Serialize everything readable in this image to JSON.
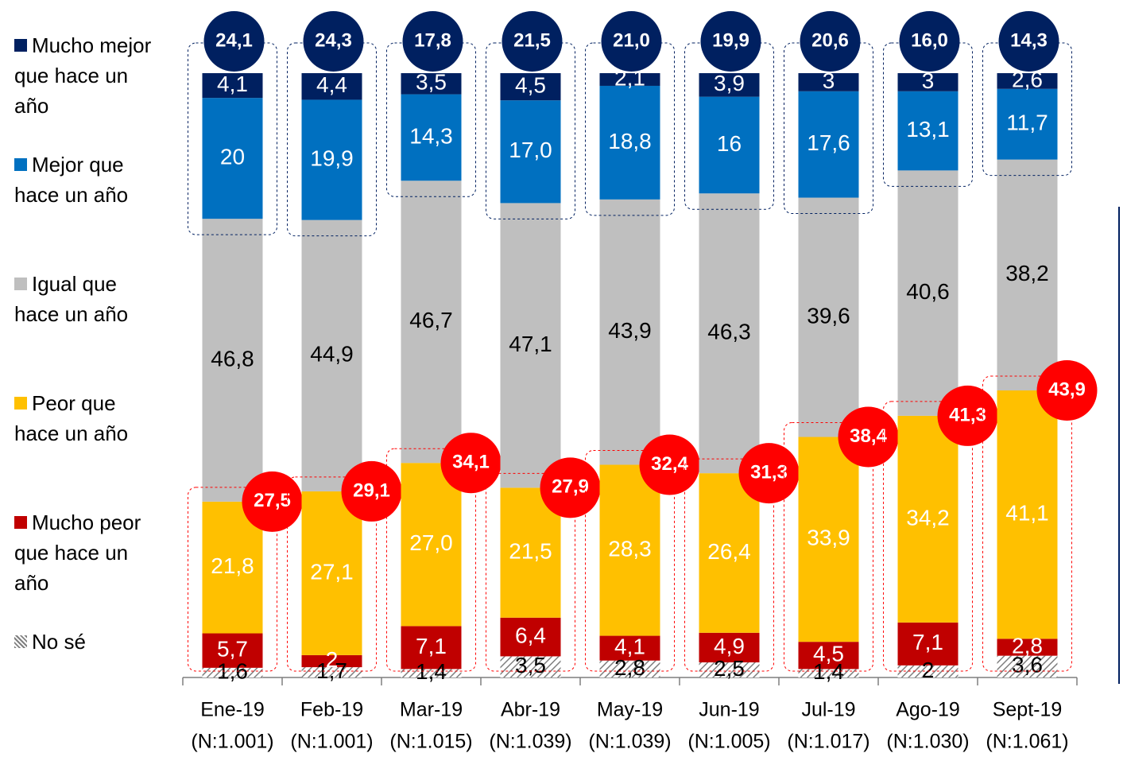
{
  "chart_data": {
    "type": "stacked_bar",
    "categories": [
      "Ene-19",
      "Feb-19",
      "Mar-19",
      "Abr-19",
      "May-19",
      "Jun-19",
      "Jul-19",
      "Ago-19",
      "Sept-19"
    ],
    "sample_sizes": [
      "(N:1.001)",
      "(N:1.001)",
      "(N:1.015)",
      "(N:1.039)",
      "(N:1.039)",
      "(N:1.005)",
      "(N:1.017)",
      "(N:1.030)",
      "(N:1.061)"
    ],
    "series": [
      {
        "name": "No sé",
        "color": "#a6a6a6",
        "hatch": true,
        "label_color": "#000000",
        "values": [
          1.6,
          1.7,
          1.4,
          3.5,
          2.8,
          2.5,
          1.4,
          2,
          3.6
        ],
        "value_labels": [
          "1,6",
          "1,7",
          "1,4",
          "3,5",
          "2,8",
          "2,5",
          "1,4",
          "2",
          "3,6"
        ]
      },
      {
        "name": "Mucho peor que hace un año",
        "color": "#c00000",
        "label_color": "#ffffff",
        "values": [
          5.7,
          2,
          7.1,
          6.4,
          4.1,
          4.9,
          4.5,
          7.1,
          2.8
        ],
        "value_labels": [
          "5,7",
          "2",
          "7,1",
          "6,4",
          "4,1",
          "4,9",
          "4,5",
          "7,1",
          "2,8"
        ]
      },
      {
        "name": "Peor que hace un año",
        "color": "#ffc000",
        "label_color": "#ffffff",
        "values": [
          21.8,
          27.1,
          27.0,
          21.5,
          28.3,
          26.4,
          33.9,
          34.2,
          41.1
        ],
        "value_labels": [
          "21,8",
          "27,1",
          "27,0",
          "21,5",
          "28,3",
          "26,4",
          "33,9",
          "34,2",
          "41,1"
        ]
      },
      {
        "name": "Igual que hace un año",
        "color": "#bfbfbf",
        "label_color": "#000000",
        "values": [
          46.8,
          44.9,
          46.7,
          47.1,
          43.9,
          46.3,
          39.6,
          40.6,
          38.2
        ],
        "value_labels": [
          "46,8",
          "44,9",
          "46,7",
          "47,1",
          "43,9",
          "46,3",
          "39,6",
          "40,6",
          "38,2"
        ]
      },
      {
        "name": "Mejor que hace un año",
        "color": "#0070c0",
        "label_color": "#ffffff",
        "values": [
          20,
          19.9,
          14.3,
          17.0,
          18.8,
          16,
          17.6,
          13.1,
          11.7
        ],
        "value_labels": [
          "20",
          "19,9",
          "14,3",
          "17,0",
          "18,8",
          "16",
          "17,6",
          "13,1",
          "11,7"
        ]
      },
      {
        "name": "Mucho mejor que hace un año",
        "color": "#002060",
        "label_color": "#ffffff",
        "values": [
          4.1,
          4.4,
          3.5,
          4.5,
          2.1,
          3.9,
          3,
          3,
          2.6
        ],
        "value_labels": [
          "4,1",
          "4,4",
          "3,5",
          "4,5",
          "2,1",
          "3,9",
          "3",
          "3",
          "2,6"
        ]
      }
    ],
    "positive_totals": {
      "color": "#002060",
      "values": [
        24.1,
        24.3,
        17.8,
        21.5,
        21.0,
        19.9,
        20.6,
        16.0,
        14.3
      ],
      "value_labels": [
        "24,1",
        "24,3",
        "17,8",
        "21,5",
        "21,0",
        "19,9",
        "20,6",
        "16,0",
        "14,3"
      ]
    },
    "negative_totals": {
      "color": "#ff0000",
      "values": [
        27.5,
        29.1,
        34.1,
        27.9,
        32.4,
        31.3,
        38.4,
        41.3,
        43.9
      ],
      "value_labels": [
        "27,5",
        "29,1",
        "34,1",
        "27,9",
        "32,4",
        "31,3",
        "38,4",
        "41,3",
        "43,9"
      ]
    }
  }
}
